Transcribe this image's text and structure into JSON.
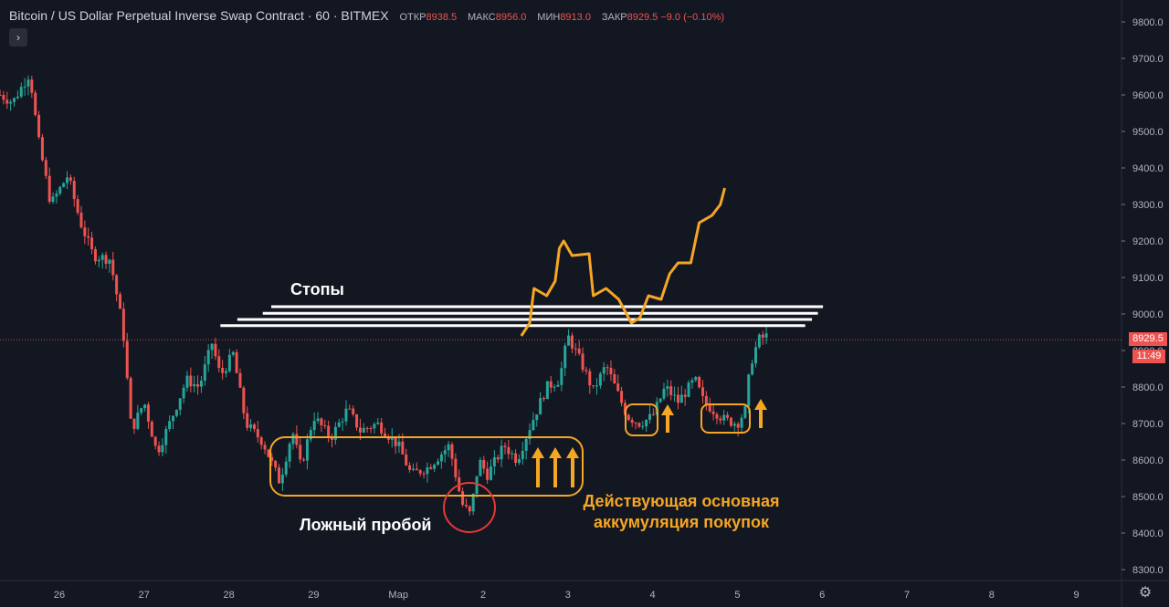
{
  "header": {
    "title": "Bitcoin / US Dollar Perpetual Inverse Swap Contract",
    "interval": "60",
    "exchange": "BITMEX",
    "o_label": "ОТКР",
    "o_val": "8938.5",
    "h_label": "МАКС",
    "h_val": "8956.0",
    "l_label": "МИН",
    "l_val": "8913.0",
    "c_label": "ЗАКР",
    "c_val": "8929.5",
    "change": "−9.0 (−0.10%)",
    "collapse_glyph": "›"
  },
  "price_tag": "8929.5",
  "countdown": "11:49",
  "settings_icon": "gear-icon",
  "chart_data": {
    "type": "candlestick",
    "ylim": [
      8270,
      9850
    ],
    "y_ticks": [
      "9800.0",
      "9700.0",
      "9600.0",
      "9500.0",
      "9400.0",
      "9300.0",
      "9200.0",
      "9100.0",
      "9000.0",
      "8900.0",
      "8800.0",
      "8700.0",
      "8600.0",
      "8500.0",
      "8400.0",
      "8300.0"
    ],
    "x_ticks": [
      "26",
      "27",
      "28",
      "29",
      "Мар",
      "2",
      "3",
      "4",
      "5",
      "6",
      "7",
      "8",
      "9"
    ],
    "last_price": 8929.5,
    "colors": {
      "up": "#26a69a",
      "down": "#ef5350",
      "annotation": "#f5a623",
      "stops": "#ffffff",
      "circle": "#e53935"
    },
    "annotations": [
      {
        "text": "Стопы"
      },
      {
        "text": "Ложный пробой"
      },
      {
        "line1": "Действующая основная",
        "line2": "аккумуляция покупок"
      }
    ],
    "stop_levels": [
      9020,
      9002,
      8985,
      8968
    ],
    "forecast_path": [
      [
        5.45,
        8940
      ],
      [
        5.55,
        8975
      ],
      [
        5.6,
        9070
      ],
      [
        5.75,
        9050
      ],
      [
        5.85,
        9090
      ],
      [
        5.9,
        9180
      ],
      [
        5.95,
        9200
      ],
      [
        6.05,
        9160
      ],
      [
        6.25,
        9165
      ],
      [
        6.3,
        9050
      ],
      [
        6.45,
        9070
      ],
      [
        6.6,
        9040
      ],
      [
        6.75,
        8975
      ],
      [
        6.85,
        8990
      ],
      [
        6.95,
        9050
      ],
      [
        7.1,
        9040
      ],
      [
        7.2,
        9110
      ],
      [
        7.3,
        9140
      ],
      [
        7.45,
        9140
      ],
      [
        7.55,
        9250
      ],
      [
        7.7,
        9270
      ],
      [
        7.8,
        9300
      ],
      [
        7.85,
        9345
      ]
    ]
  }
}
